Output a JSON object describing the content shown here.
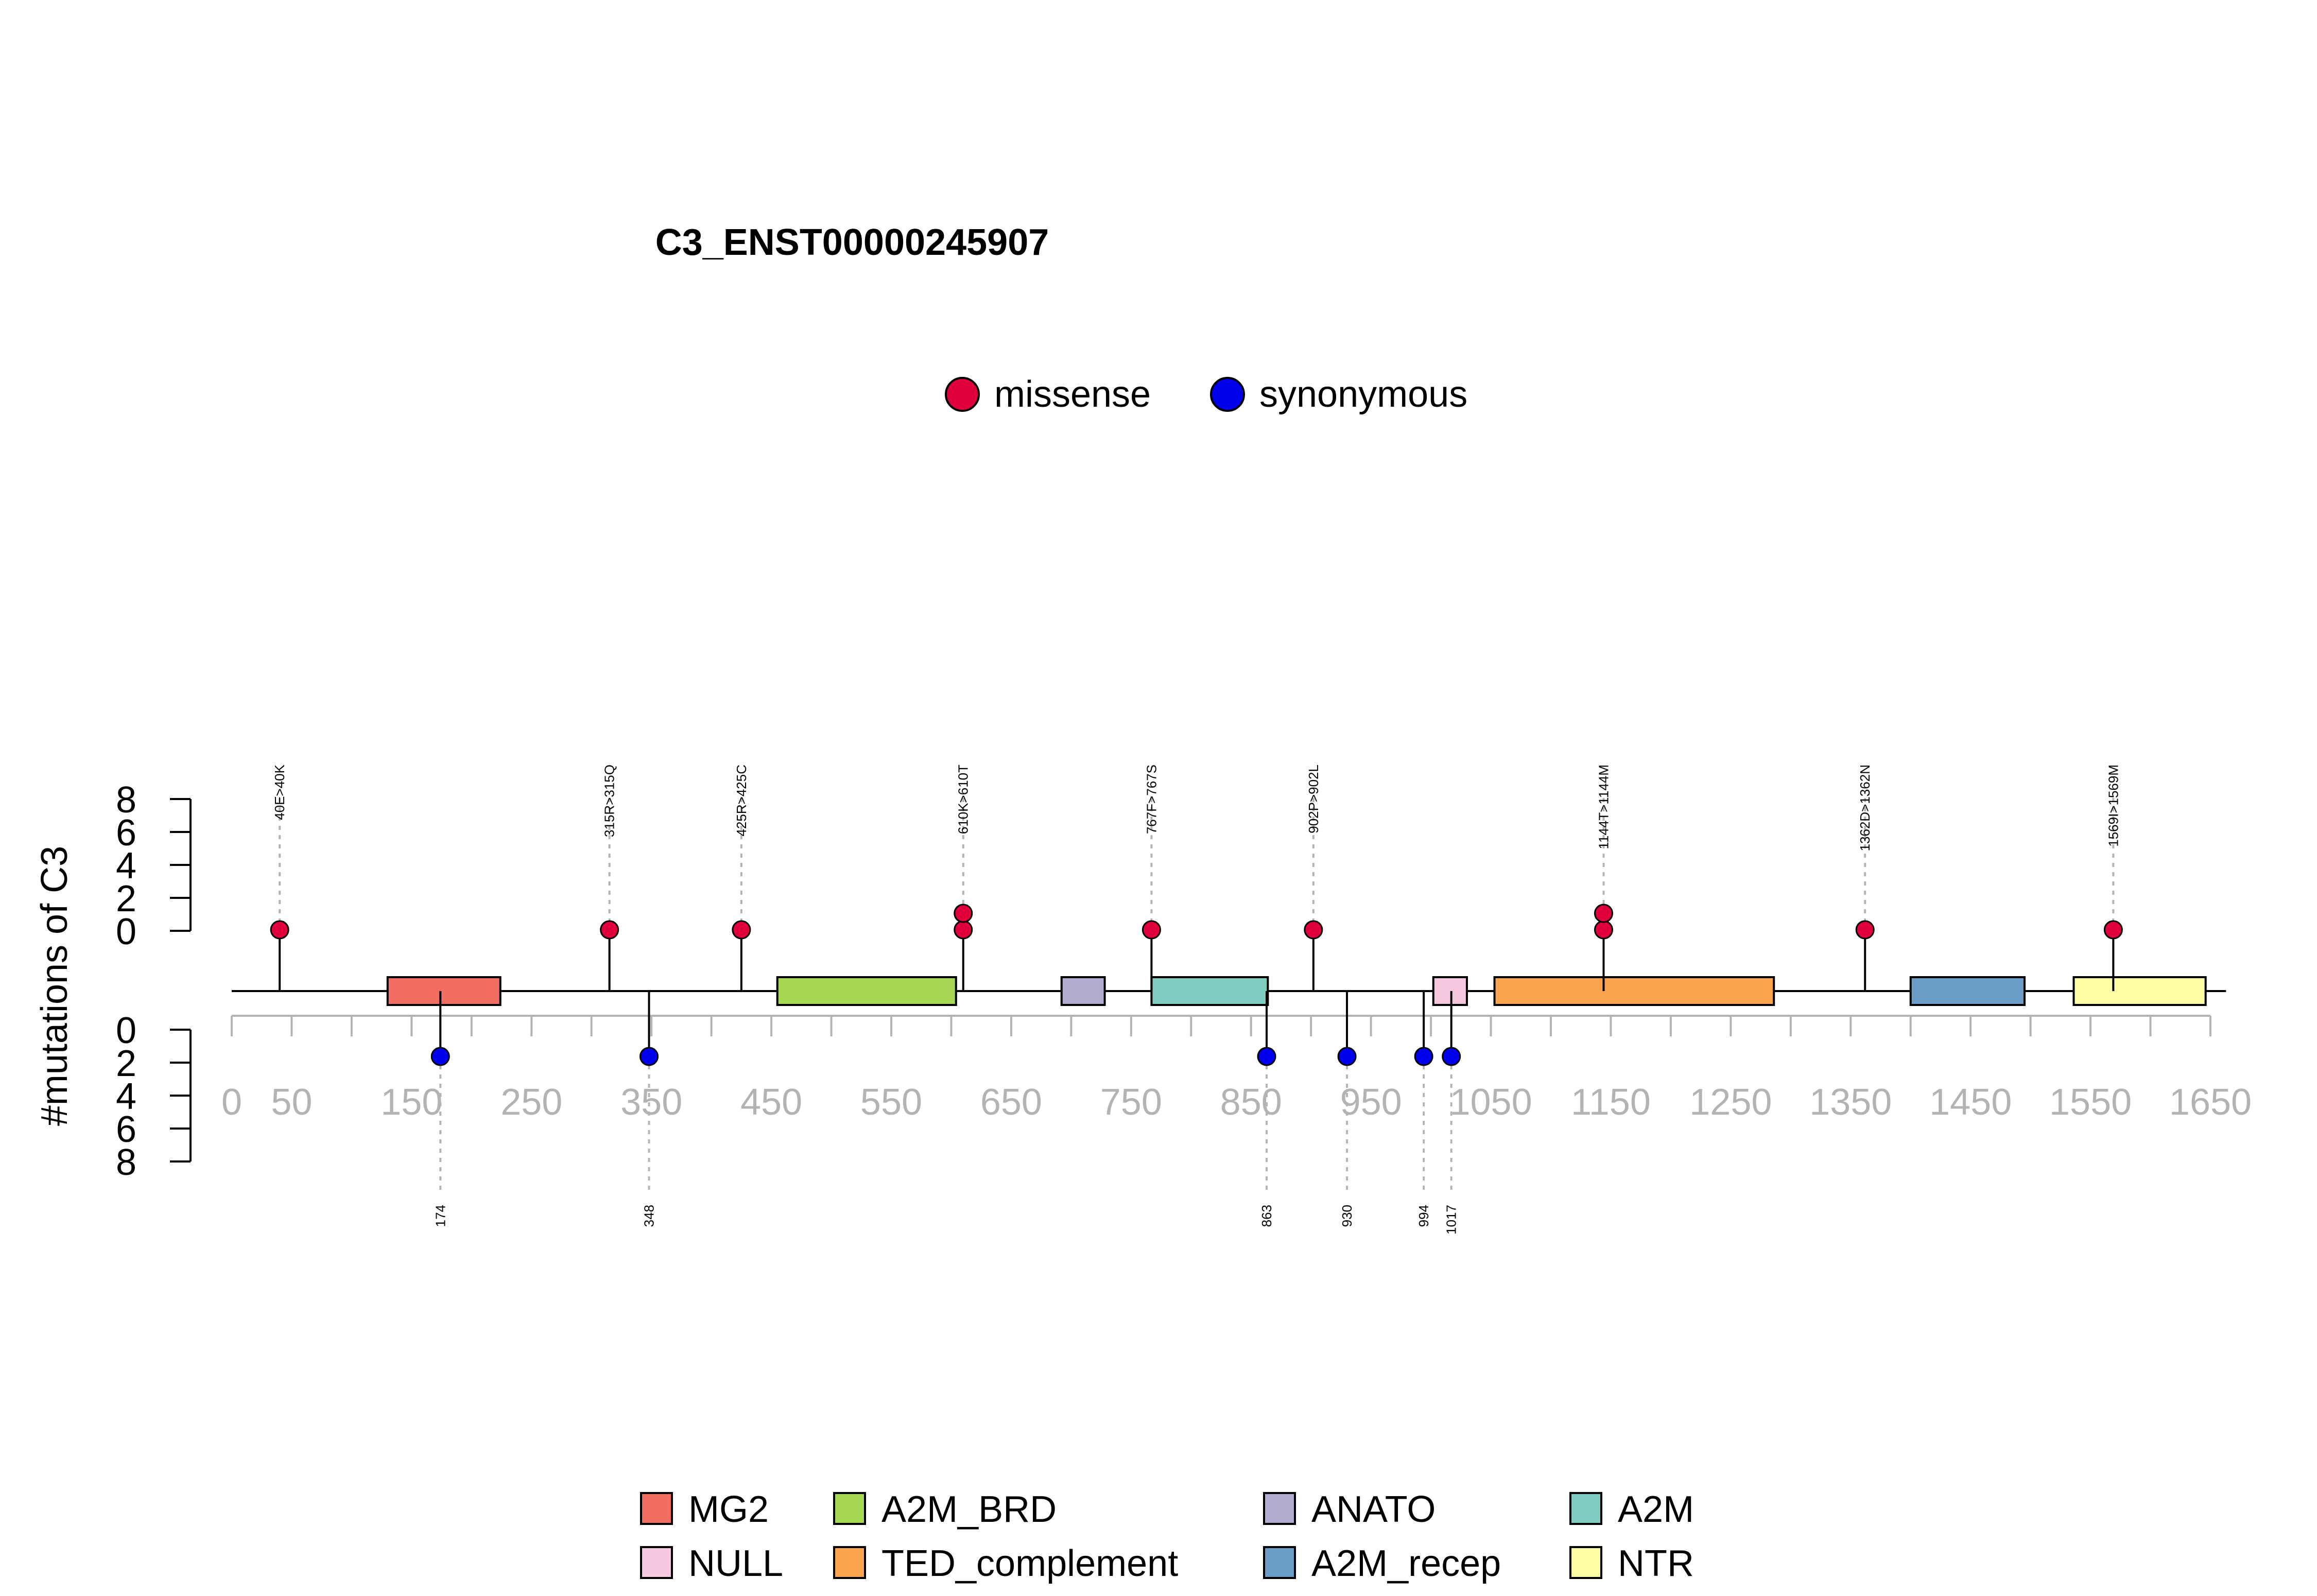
{
  "chart_data": {
    "type": "lollipop",
    "title": "C3_ENST00000245907",
    "ylabel": "#mutations of C3",
    "protein_length": 1663,
    "xlim": [
      0,
      1650
    ],
    "x_ticks": [
      0,
      50,
      150,
      250,
      350,
      450,
      550,
      650,
      750,
      850,
      950,
      1050,
      1150,
      1250,
      1350,
      1450,
      1550,
      1650
    ],
    "y_ticks": [
      0,
      2,
      4,
      6,
      8
    ],
    "mutation_legend": [
      {
        "name": "missense",
        "color": "#e0003c"
      },
      {
        "name": "synonymous",
        "color": "#0000ee"
      }
    ],
    "domains": [
      {
        "name": "MG2",
        "start": 130,
        "end": 224,
        "color": "#f46d63"
      },
      {
        "name": "A2M_BRD",
        "start": 455,
        "end": 604,
        "color": "#a6d854"
      },
      {
        "name": "ANATO",
        "start": 692,
        "end": 728,
        "color": "#b3acd1"
      },
      {
        "name": "A2M",
        "start": 767,
        "end": 864,
        "color": "#80cdc1"
      },
      {
        "name": "NULL",
        "start": 1002,
        "end": 1030,
        "color": "#f7c6df"
      },
      {
        "name": "TED_complement",
        "start": 1053,
        "end": 1286,
        "color": "#fca44f"
      },
      {
        "name": "A2M_recep",
        "start": 1400,
        "end": 1495,
        "color": "#6a9ec8"
      },
      {
        "name": "NTR",
        "start": 1536,
        "end": 1646,
        "color": "#ffffa6"
      }
    ],
    "domain_legend_order": [
      "MG2",
      "A2M_BRD",
      "ANATO",
      "A2M",
      "NULL",
      "TED_complement",
      "A2M_recep",
      "NTR"
    ],
    "top_mutations": [
      {
        "pos": 40,
        "label": "40E>40K",
        "count": 1,
        "type": "missense"
      },
      {
        "pos": 315,
        "label": "315R>315Q",
        "count": 1,
        "type": "missense"
      },
      {
        "pos": 425,
        "label": "425R>425C",
        "count": 1,
        "type": "missense"
      },
      {
        "pos": 610,
        "label": "610K>610T",
        "count": 2,
        "type": "missense"
      },
      {
        "pos": 767,
        "label": "767F>767S",
        "count": 1,
        "type": "missense"
      },
      {
        "pos": 902,
        "label": "902P>902L",
        "count": 1,
        "type": "missense"
      },
      {
        "pos": 1144,
        "label": "1144T>1144M",
        "count": 2,
        "type": "missense"
      },
      {
        "pos": 1362,
        "label": "1362D>1362N",
        "count": 1,
        "type": "missense"
      },
      {
        "pos": 1569,
        "label": "1569I>1569M",
        "count": 1,
        "type": "missense"
      }
    ],
    "bottom_mutations": [
      {
        "pos": 174,
        "label": "174",
        "count": 1,
        "type": "synonymous"
      },
      {
        "pos": 348,
        "label": "348",
        "count": 1,
        "type": "synonymous"
      },
      {
        "pos": 863,
        "label": "863",
        "count": 1,
        "type": "synonymous"
      },
      {
        "pos": 930,
        "label": "930",
        "count": 1,
        "type": "synonymous"
      },
      {
        "pos": 994,
        "label": "994",
        "count": 1,
        "type": "synonymous"
      },
      {
        "pos": 1017,
        "label": "1017",
        "count": 1,
        "type": "synonymous"
      }
    ]
  }
}
